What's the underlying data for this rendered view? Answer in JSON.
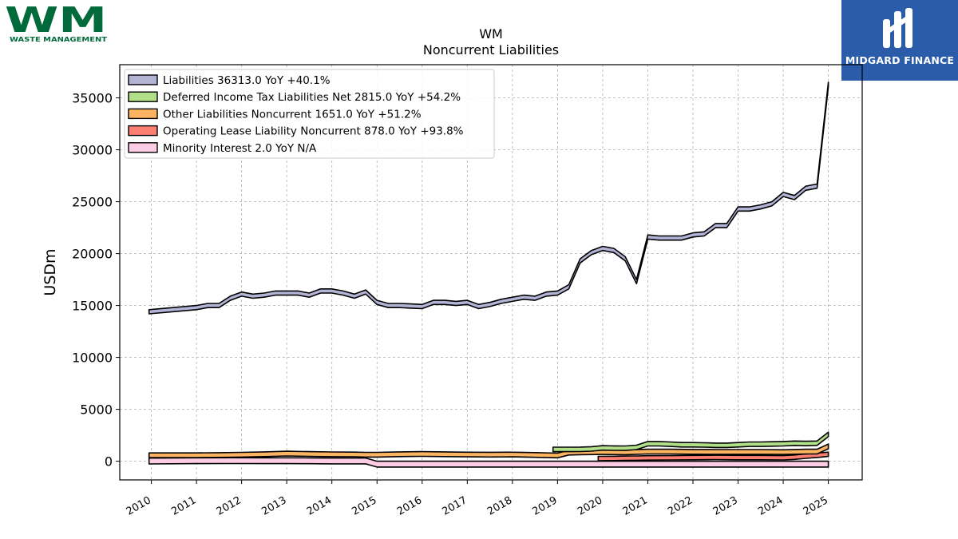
{
  "brand": {
    "left_logo_letters": "WM",
    "left_logo_caption": "WASTE MANAGEMENT",
    "right_logo_text": "MIDGARD FINANCE",
    "wm_green": "#006a3b",
    "wm_yellow": "#f2b21b",
    "midgard_blue": "#2a5caa"
  },
  "chart_data": {
    "type": "area",
    "title": "WM",
    "subtitle": "Noncurrent  Liabilities",
    "ylabel": "USDm",
    "xlabel": "",
    "ylim": [
      -1800,
      38200
    ],
    "xlim": [
      2009.3,
      2025.75
    ],
    "yticks": [
      0,
      5000,
      10000,
      15000,
      20000,
      25000,
      30000,
      35000
    ],
    "ytick_labels": [
      "0",
      "5000",
      "10000",
      "15000",
      "20000",
      "25000",
      "30000",
      "35000"
    ],
    "xticks": [
      2010,
      2011,
      2012,
      2013,
      2014,
      2015,
      2016,
      2017,
      2018,
      2019,
      2020,
      2021,
      2022,
      2023,
      2024,
      2025
    ],
    "xtick_labels": [
      "2010",
      "2011",
      "2012",
      "2013",
      "2014",
      "2015",
      "2016",
      "2017",
      "2018",
      "2019",
      "2020",
      "2021",
      "2022",
      "2023",
      "2024",
      "2025"
    ],
    "grid": true,
    "legend_position": "top-left",
    "series": [
      {
        "name": "Liabilities",
        "legend": "Liabilities  36313.0 YoY +40.1%",
        "color": "#b3b3d6",
        "band": 400,
        "x": [
          2009.95,
          2011.0,
          2011.25,
          2011.5,
          2011.75,
          2012.0,
          2012.25,
          2012.5,
          2012.75,
          2013.0,
          2013.25,
          2013.5,
          2013.75,
          2014.0,
          2014.25,
          2014.5,
          2014.75,
          2015.0,
          2015.25,
          2015.5,
          2015.75,
          2016.0,
          2016.25,
          2016.5,
          2016.75,
          2017.0,
          2017.25,
          2017.5,
          2017.75,
          2018.0,
          2018.25,
          2018.5,
          2018.75,
          2019.0,
          2019.25,
          2019.5,
          2019.75,
          2020.0,
          2020.25,
          2020.5,
          2020.75,
          2021.0,
          2021.25,
          2021.5,
          2021.75,
          2022.0,
          2022.25,
          2022.5,
          2022.75,
          2023.0,
          2023.25,
          2023.5,
          2023.75,
          2024.0,
          2024.25,
          2024.5,
          2024.75,
          2025.0
        ],
        "values": [
          14600,
          15000,
          15200,
          15200,
          15900,
          16300,
          16100,
          16200,
          16400,
          16400,
          16400,
          16200,
          16600,
          16600,
          16400,
          16100,
          16500,
          15500,
          15200,
          15200,
          15150,
          15100,
          15500,
          15500,
          15400,
          15500,
          15100,
          15300,
          15600,
          15800,
          16000,
          15900,
          16300,
          16400,
          17000,
          19500,
          20300,
          20700,
          20500,
          19700,
          17500,
          21800,
          21700,
          21700,
          21700,
          22000,
          22100,
          22900,
          22900,
          24500,
          24500,
          24700,
          25000,
          25900,
          25600,
          26500,
          26700,
          36500
        ]
      },
      {
        "name": "Deferred Income Tax Liabilities Net",
        "legend": "Deferred Income Tax Liabilities Net  2815.0 YoY +54.2%",
        "color": "#b2df8a",
        "band": 430,
        "x": [
          2018.9,
          2019.25,
          2019.5,
          2019.75,
          2020.0,
          2020.25,
          2020.5,
          2020.75,
          2021.0,
          2021.25,
          2021.5,
          2021.75,
          2022.0,
          2022.25,
          2022.5,
          2022.75,
          2023.0,
          2023.25,
          2023.5,
          2023.75,
          2024.0,
          2024.25,
          2024.5,
          2024.75,
          2025.0
        ],
        "values": [
          1350,
          1350,
          1360,
          1400,
          1500,
          1480,
          1470,
          1550,
          1900,
          1900,
          1850,
          1800,
          1800,
          1780,
          1750,
          1750,
          1800,
          1850,
          1850,
          1880,
          1900,
          1950,
          1920,
          1950,
          2800
        ]
      },
      {
        "name": "Other Liabilities Noncurrent",
        "legend": "Other Liabilities Noncurrent  1651.0 YoY +51.2%",
        "color": "#fdb462",
        "band": 450,
        "x": [
          2009.95,
          2011.0,
          2011.5,
          2012.0,
          2012.5,
          2013.0,
          2013.5,
          2014.0,
          2014.5,
          2014.75,
          2015.0,
          2015.5,
          2016.0,
          2016.5,
          2017.0,
          2017.5,
          2018.0,
          2018.5,
          2019.0,
          2019.25,
          2019.5,
          2020.0,
          2020.5,
          2021.0,
          2021.5,
          2022.0,
          2022.5,
          2023.0,
          2023.5,
          2024.0,
          2024.5,
          2024.75,
          2025.0
        ],
        "values": [
          800,
          800,
          820,
          850,
          900,
          960,
          920,
          890,
          880,
          850,
          850,
          900,
          920,
          900,
          870,
          860,
          870,
          830,
          780,
          1050,
          1080,
          1100,
          1080,
          1150,
          1150,
          1130,
          1120,
          1120,
          1120,
          1100,
          1150,
          1150,
          1650
        ]
      },
      {
        "name": "Operating Lease Liability Noncurrent",
        "legend": "Operating Lease Liability Noncurrent  878.0 YoY +93.8%",
        "color": "#fb8072",
        "band": 420,
        "x": [
          2019.9,
          2020.25,
          2020.5,
          2020.75,
          2021.0,
          2021.5,
          2022.0,
          2022.5,
          2023.0,
          2023.5,
          2024.0,
          2024.25,
          2024.5,
          2024.75,
          2025.0
        ],
        "values": [
          470,
          480,
          500,
          510,
          530,
          540,
          560,
          580,
          560,
          560,
          540,
          600,
          700,
          780,
          880
        ]
      },
      {
        "name": "Minority Interest",
        "legend": "Minority Interest  2.0 YoY N/A",
        "color": "#fccde5",
        "band": 560,
        "x": [
          2009.95,
          2011.0,
          2011.75,
          2012.5,
          2013.0,
          2013.5,
          2014.0,
          2014.75,
          2015.0,
          2015.5,
          2016.0,
          2017.0,
          2018.0,
          2018.5,
          2019.0,
          2020.0,
          2021.0,
          2022.0,
          2023.0,
          2024.0,
          2025.0
        ],
        "values": [
          300,
          330,
          340,
          330,
          330,
          320,
          310,
          310,
          0,
          0,
          0,
          0,
          0,
          0,
          0,
          0,
          0,
          0,
          0,
          0,
          0
        ]
      }
    ]
  }
}
